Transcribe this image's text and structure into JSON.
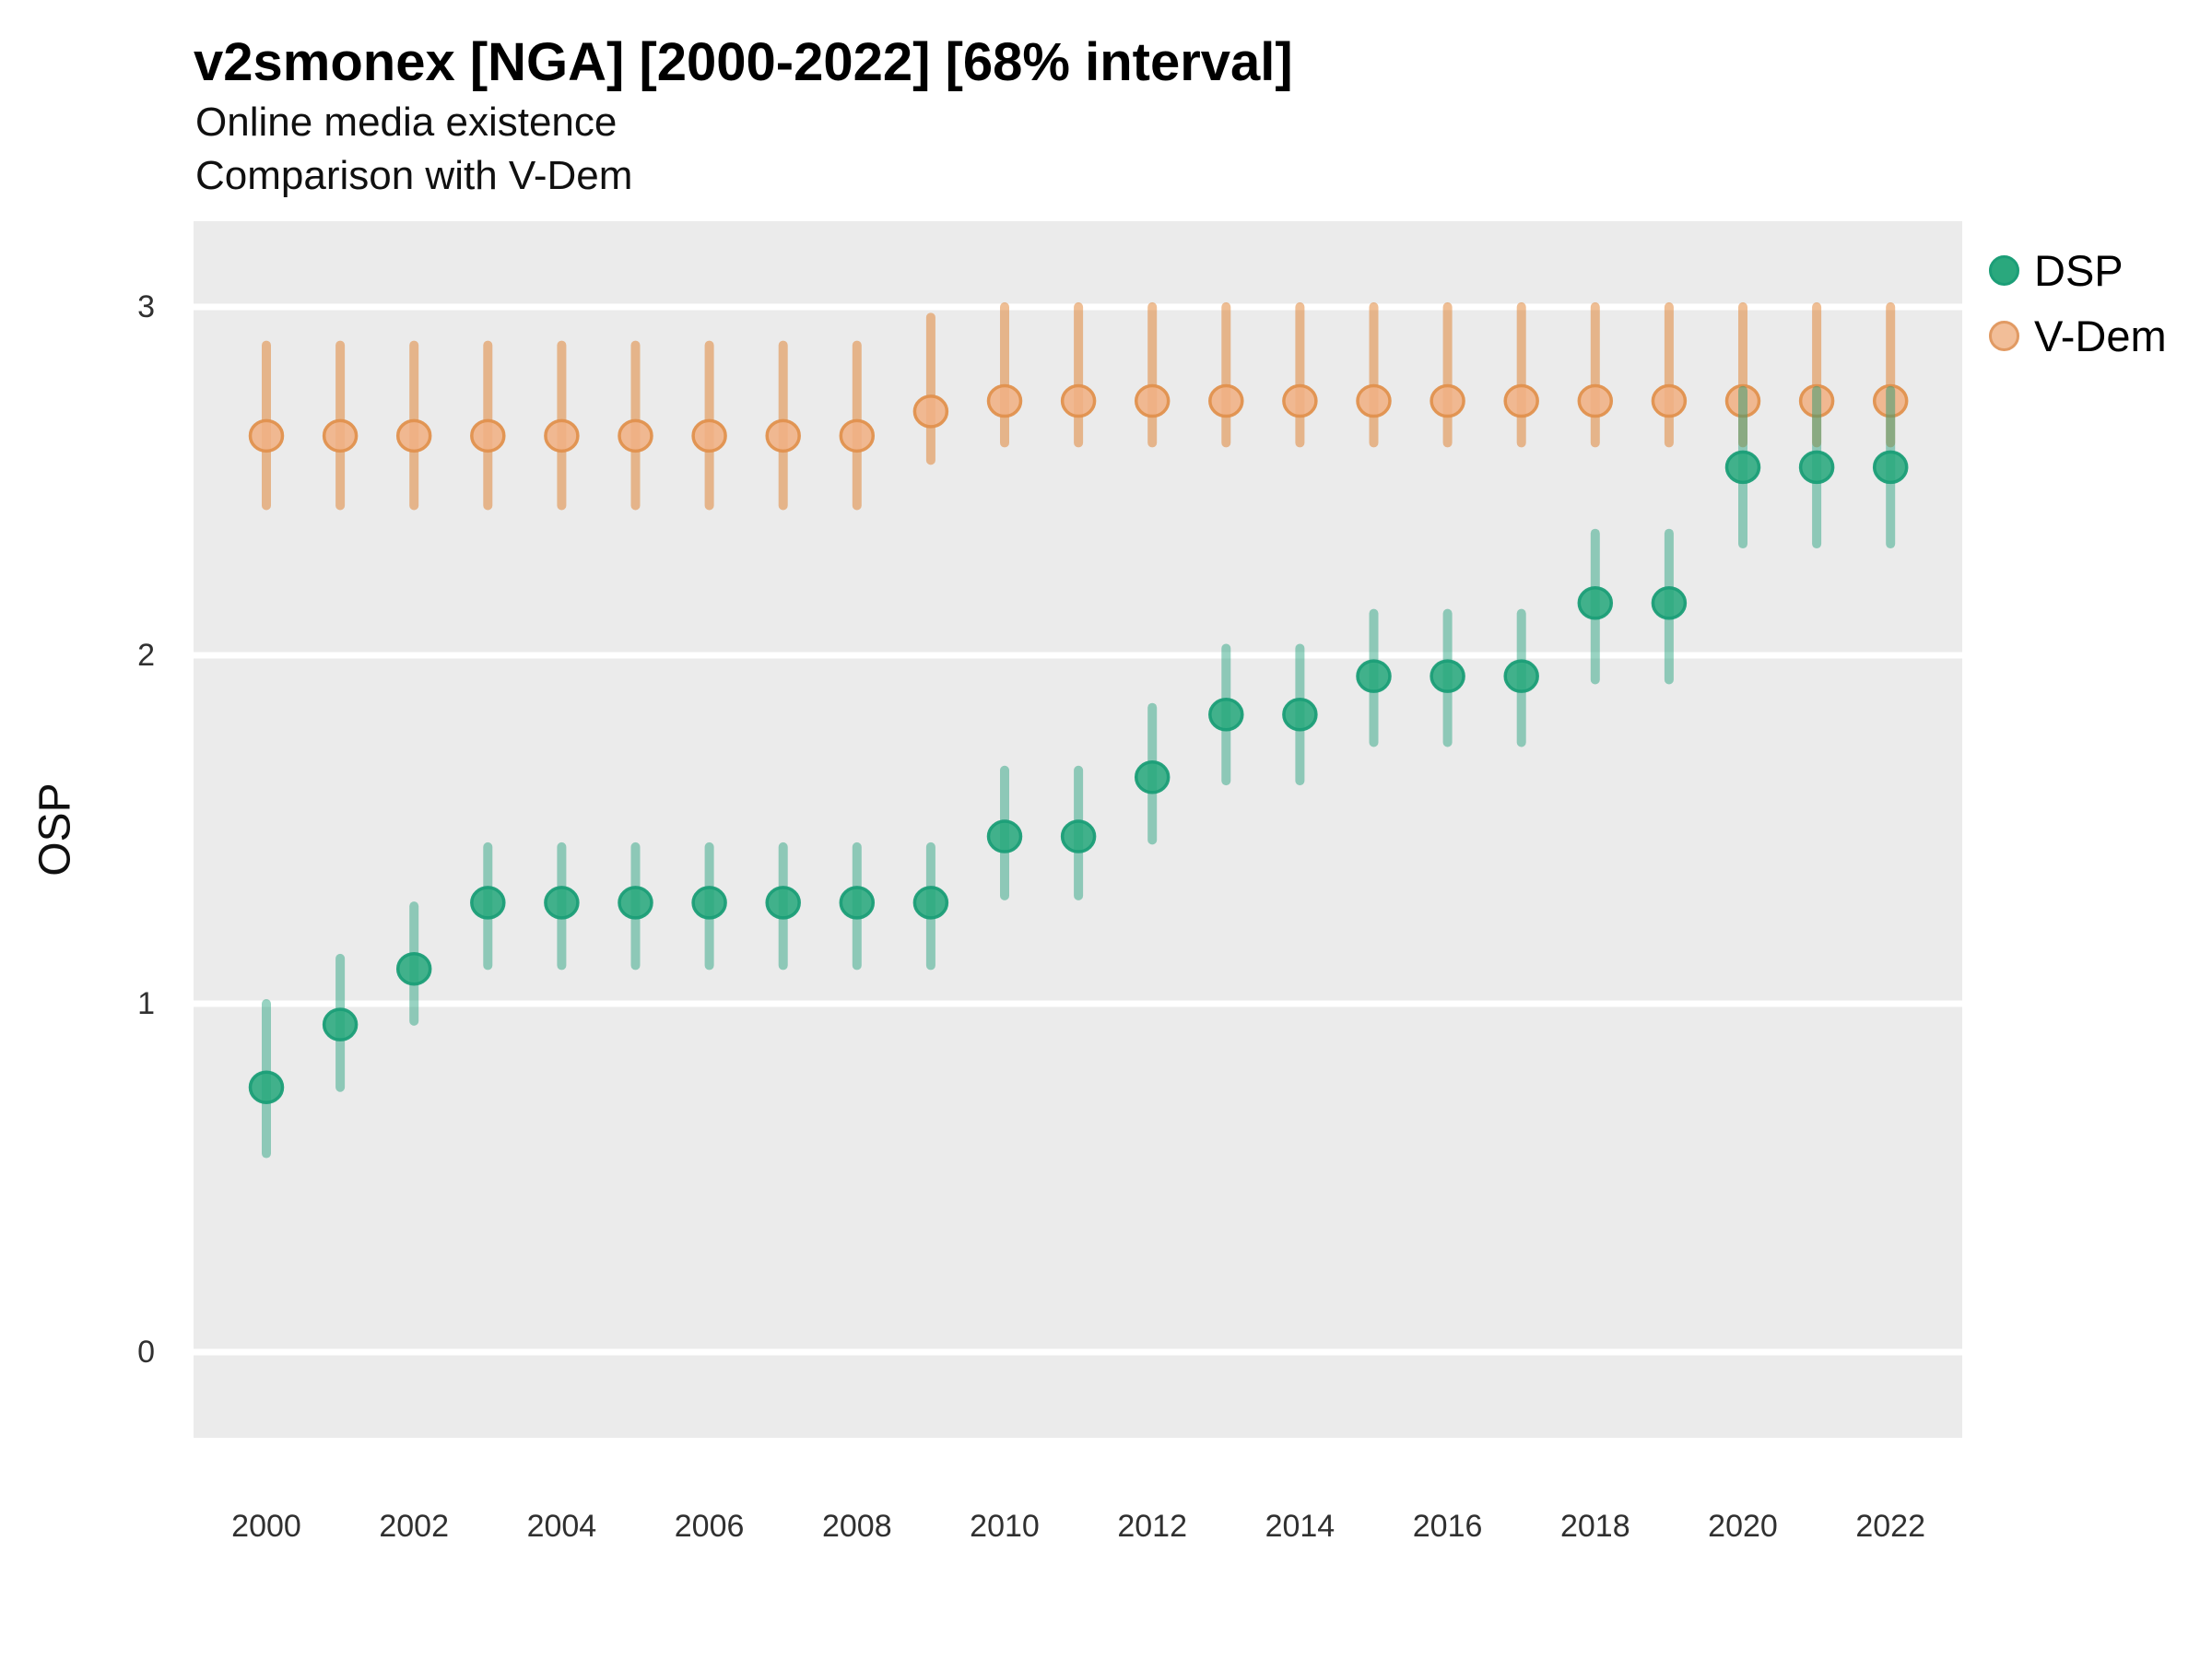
{
  "title": "v2smonex [NGA] [2000-2022] [68% interval]",
  "subtitle_line1": "Online media existence",
  "subtitle_line2": "Comparison with V-Dem",
  "ylabel": "OSP",
  "colors": {
    "panel_background": "#EBEBEB",
    "gridline": "#FFFFFF",
    "dsp_point_fill": "#29A87D",
    "dsp_point_stroke": "#1B9E77",
    "dsp_interval": "rgba(27,158,119,0.45)",
    "vdem_point_fill": "#F0B184",
    "vdem_point_stroke": "#E0914E",
    "vdem_interval": "rgba(222,119,32,0.48)",
    "axis_text": "#303030",
    "title_text": "#000000"
  },
  "legend": {
    "items": [
      {
        "label": "DSP",
        "fill": "#2AA87D",
        "stroke": "#1B9E77"
      },
      {
        "label": "V-Dem",
        "fill": "#F2BE98",
        "stroke": "#E19A63"
      }
    ]
  },
  "chart_data": {
    "type": "scatter",
    "title": "v2smonex [NGA] [2000-2022] [68% interval]",
    "subtitle": [
      "Online media existence",
      "Comparison with V-Dem"
    ],
    "xlabel": "",
    "ylabel": "OSP",
    "interval_level": "68%",
    "legend_position": "top-right",
    "grid": "white major gridlines on grey panel",
    "xlim": [
      1999,
      2023
    ],
    "ylim": [
      -0.25,
      3.25
    ],
    "x_ticks": [
      2000,
      2002,
      2004,
      2006,
      2008,
      2010,
      2012,
      2014,
      2016,
      2018,
      2020,
      2022
    ],
    "y_ticks": [
      0,
      1,
      2,
      3
    ],
    "x": [
      2000,
      2001,
      2002,
      2003,
      2004,
      2005,
      2006,
      2007,
      2008,
      2009,
      2010,
      2011,
      2012,
      2013,
      2014,
      2015,
      2016,
      2017,
      2018,
      2019,
      2020,
      2021,
      2022
    ],
    "series": [
      {
        "name": "V-Dem",
        "marker_color": "#F0B184",
        "values": [
          2.63,
          2.63,
          2.63,
          2.63,
          2.63,
          2.63,
          2.63,
          2.63,
          2.63,
          2.7,
          2.73,
          2.73,
          2.73,
          2.73,
          2.73,
          2.73,
          2.73,
          2.73,
          2.73,
          2.73,
          2.73,
          2.73,
          2.73
        ],
        "lower": [
          2.43,
          2.43,
          2.43,
          2.43,
          2.43,
          2.43,
          2.43,
          2.43,
          2.43,
          2.56,
          2.61,
          2.61,
          2.61,
          2.61,
          2.61,
          2.61,
          2.61,
          2.61,
          2.61,
          2.61,
          2.61,
          2.61,
          2.61
        ],
        "upper": [
          2.89,
          2.89,
          2.89,
          2.89,
          2.89,
          2.89,
          2.89,
          2.89,
          2.89,
          2.97,
          3.0,
          3.0,
          3.0,
          3.0,
          3.0,
          3.0,
          3.0,
          3.0,
          3.0,
          3.0,
          3.0,
          3.0,
          3.0
        ]
      },
      {
        "name": "DSP",
        "marker_color": "#29A87D",
        "values": [
          0.76,
          0.94,
          1.1,
          1.29,
          1.29,
          1.29,
          1.29,
          1.29,
          1.29,
          1.29,
          1.48,
          1.48,
          1.65,
          1.83,
          1.83,
          1.94,
          1.94,
          1.94,
          2.15,
          2.15,
          2.54,
          2.54,
          2.54
        ],
        "lower": [
          0.57,
          0.76,
          0.95,
          1.11,
          1.11,
          1.11,
          1.11,
          1.11,
          1.11,
          1.11,
          1.31,
          1.31,
          1.47,
          1.64,
          1.64,
          1.75,
          1.75,
          1.75,
          1.93,
          1.93,
          2.32,
          2.32,
          2.32
        ],
        "upper": [
          1.0,
          1.13,
          1.28,
          1.45,
          1.45,
          1.45,
          1.45,
          1.45,
          1.45,
          1.45,
          1.67,
          1.67,
          1.85,
          2.02,
          2.02,
          2.12,
          2.12,
          2.12,
          2.35,
          2.35,
          2.76,
          2.76,
          2.76
        ]
      }
    ]
  }
}
